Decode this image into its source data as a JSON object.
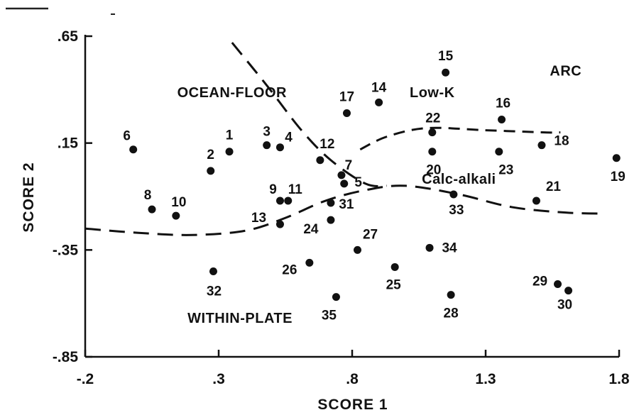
{
  "chart_data": {
    "type": "scatter",
    "xlabel": "SCORE 1",
    "ylabel": "SCORE 2",
    "xlim": [
      -0.2,
      1.8
    ],
    "ylim": [
      -0.85,
      0.65
    ],
    "x_ticks": [
      -0.2,
      0.3,
      0.8,
      1.3,
      1.8
    ],
    "x_tick_labels": [
      "-.2",
      ".3",
      ".8",
      "1.3",
      "1.8"
    ],
    "y_ticks": [
      -0.85,
      -0.35,
      0.15,
      0.65
    ],
    "y_tick_labels": [
      "-.85",
      "-.35",
      ".15",
      ".65"
    ],
    "grid": false,
    "region_labels": [
      {
        "text": "OCEAN-FLOOR",
        "x": 0.35,
        "y": 0.365
      },
      {
        "text": "Low-K",
        "x": 1.1,
        "y": 0.365
      },
      {
        "text": "ARC",
        "x": 1.6,
        "y": 0.465
      },
      {
        "text": "Calc-alkali",
        "x": 1.2,
        "y": -0.04
      },
      {
        "text": "WITHIN-PLATE",
        "x": 0.38,
        "y": -0.69
      }
    ],
    "boundaries": [
      {
        "style": "long-dash",
        "points": [
          [
            0.35,
            0.62
          ],
          [
            0.48,
            0.42
          ],
          [
            0.61,
            0.21
          ],
          [
            0.72,
            0.07
          ],
          [
            0.85,
            -0.04
          ],
          [
            0.93,
            -0.05
          ]
        ]
      },
      {
        "style": "dash",
        "points": [
          [
            0.83,
            0.12
          ],
          [
            0.93,
            0.18
          ],
          [
            1.08,
            0.22
          ],
          [
            1.3,
            0.21
          ],
          [
            1.52,
            0.2
          ],
          [
            1.58,
            0.2
          ]
        ]
      },
      {
        "style": "long-dash",
        "points": [
          [
            -0.2,
            -0.25
          ],
          [
            0.0,
            -0.27
          ],
          [
            0.2,
            -0.28
          ],
          [
            0.4,
            -0.26
          ],
          [
            0.55,
            -0.2
          ],
          [
            0.7,
            -0.12
          ],
          [
            0.85,
            -0.07
          ],
          [
            1.0,
            -0.05
          ],
          [
            1.2,
            -0.09
          ],
          [
            1.4,
            -0.15
          ],
          [
            1.6,
            -0.175
          ],
          [
            1.75,
            -0.18
          ]
        ]
      }
    ],
    "points": [
      {
        "label": "1",
        "x": 0.34,
        "y": 0.11
      },
      {
        "label": "2",
        "x": 0.27,
        "y": 0.02
      },
      {
        "label": "3",
        "x": 0.48,
        "y": 0.14
      },
      {
        "label": "4",
        "x": 0.53,
        "y": 0.13
      },
      {
        "label": "5",
        "x": 0.77,
        "y": -0.04
      },
      {
        "label": "6",
        "x": -0.02,
        "y": 0.12
      },
      {
        "label": "7",
        "x": 0.76,
        "y": 0.0
      },
      {
        "label": "8",
        "x": 0.05,
        "y": -0.16
      },
      {
        "label": "9",
        "x": 0.53,
        "y": -0.12
      },
      {
        "label": "11",
        "x": 0.56,
        "y": -0.12
      },
      {
        "label": "10",
        "x": 0.14,
        "y": -0.19
      },
      {
        "label": "12",
        "x": 0.68,
        "y": 0.07
      },
      {
        "label": "13",
        "x": 0.53,
        "y": -0.23
      },
      {
        "label": "14",
        "x": 0.9,
        "y": 0.34
      },
      {
        "label": "15",
        "x": 1.15,
        "y": 0.48
      },
      {
        "label": "16",
        "x": 1.36,
        "y": 0.26
      },
      {
        "label": "17",
        "x": 0.78,
        "y": 0.29
      },
      {
        "label": "18",
        "x": 1.51,
        "y": 0.14
      },
      {
        "label": "19",
        "x": 1.79,
        "y": 0.08
      },
      {
        "label": "20",
        "x": 1.1,
        "y": 0.11
      },
      {
        "label": "21",
        "x": 1.49,
        "y": -0.12
      },
      {
        "label": "22",
        "x": 1.1,
        "y": 0.2
      },
      {
        "label": "23",
        "x": 1.35,
        "y": 0.11
      },
      {
        "label": "24",
        "x": 0.72,
        "y": -0.21
      },
      {
        "label": "25",
        "x": 0.96,
        "y": -0.43
      },
      {
        "label": "26",
        "x": 0.64,
        "y": -0.41
      },
      {
        "label": "27",
        "x": 0.82,
        "y": -0.35
      },
      {
        "label": "28",
        "x": 1.17,
        "y": -0.56
      },
      {
        "label": "29",
        "x": 1.57,
        "y": -0.51
      },
      {
        "label": "30",
        "x": 1.61,
        "y": -0.54
      },
      {
        "label": "31",
        "x": 0.72,
        "y": -0.13
      },
      {
        "label": "32",
        "x": 0.28,
        "y": -0.45
      },
      {
        "label": "33",
        "x": 1.18,
        "y": -0.09
      },
      {
        "label": "34",
        "x": 1.09,
        "y": -0.34
      },
      {
        "label": "35",
        "x": 0.74,
        "y": -0.57
      }
    ]
  }
}
